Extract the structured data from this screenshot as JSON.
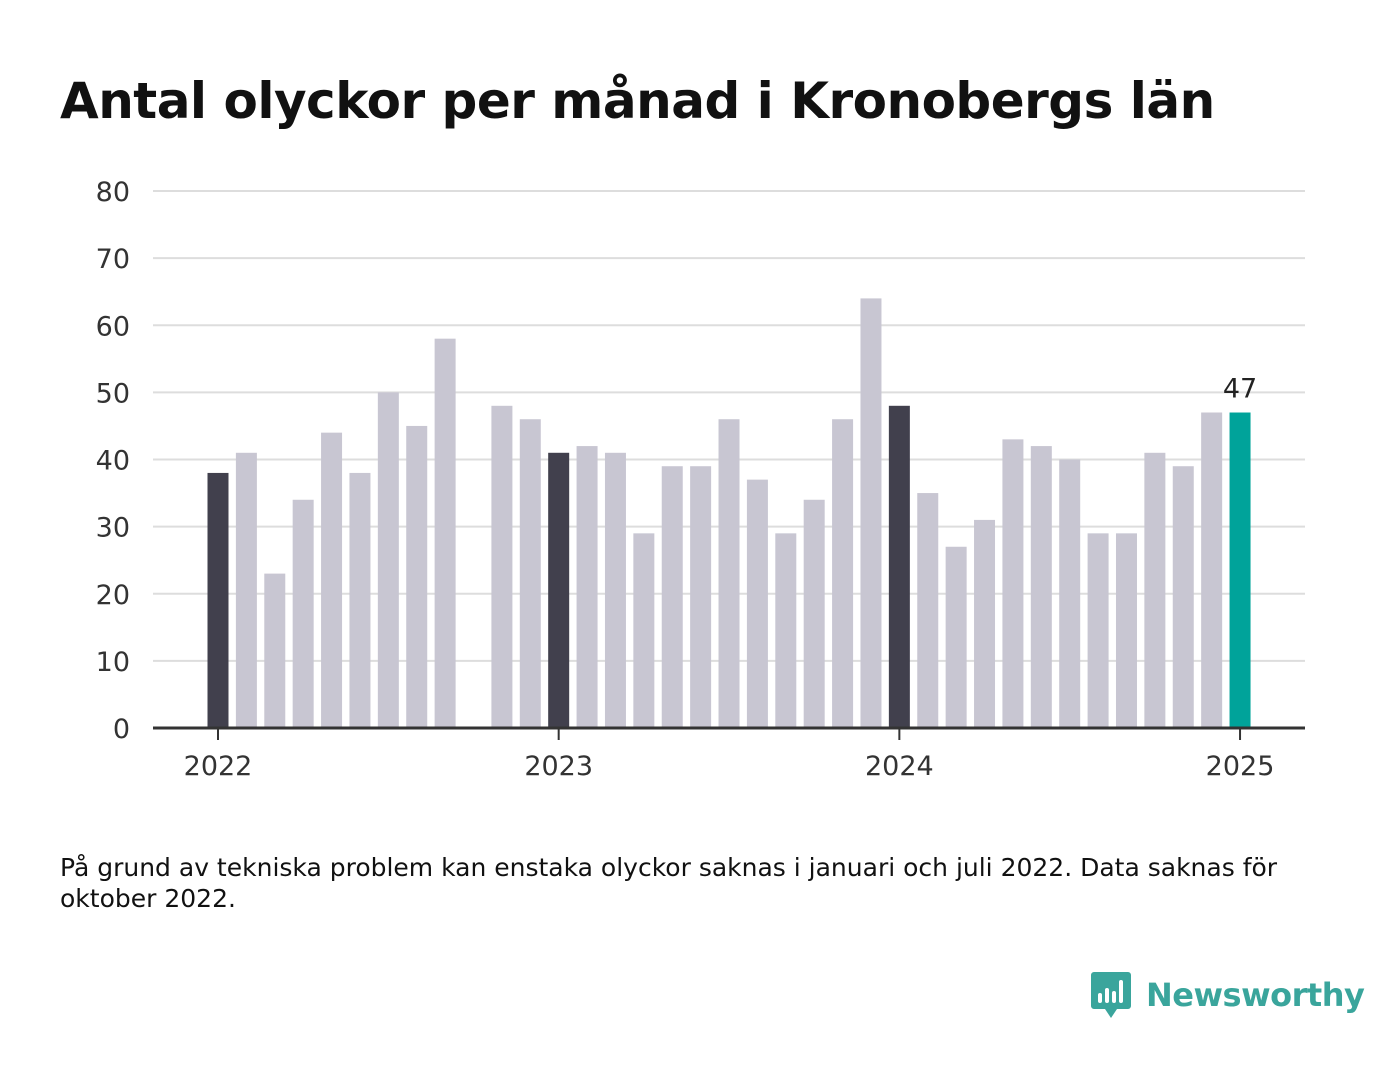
{
  "title": "Antal olyckor per månad i Kronobergs län",
  "note": "På grund av tekniska problem kan enstaka olyckor saknas i januari och juli 2022. Data saknas för oktober 2022.",
  "brand": {
    "name": "Newsworthy"
  },
  "colors": {
    "bar_default": "#c8c6d2",
    "bar_january": "#41404d",
    "bar_latest": "#00a39a",
    "grid": "#dddddd",
    "axis": "#333333",
    "brand": "#3aa59c"
  },
  "chart_data": {
    "type": "bar",
    "x": [
      "2022-01",
      "2022-02",
      "2022-03",
      "2022-04",
      "2022-05",
      "2022-06",
      "2022-07",
      "2022-08",
      "2022-09",
      "2022-10",
      "2022-11",
      "2022-12",
      "2023-01",
      "2023-02",
      "2023-03",
      "2023-04",
      "2023-05",
      "2023-06",
      "2023-07",
      "2023-08",
      "2023-09",
      "2023-10",
      "2023-11",
      "2023-12",
      "2024-01",
      "2024-02",
      "2024-03",
      "2024-04",
      "2024-05",
      "2024-06",
      "2024-07",
      "2024-08",
      "2024-09",
      "2024-10",
      "2024-11",
      "2024-12",
      "2025-01"
    ],
    "values": [
      38,
      41,
      23,
      34,
      44,
      38,
      50,
      45,
      58,
      null,
      48,
      46,
      41,
      42,
      41,
      29,
      39,
      39,
      46,
      37,
      29,
      34,
      46,
      64,
      48,
      35,
      27,
      31,
      43,
      42,
      40,
      29,
      29,
      41,
      39,
      47,
      47
    ],
    "x_ticks": [
      "2022",
      "2023",
      "2024",
      "2025"
    ],
    "y_ticks": [
      0,
      10,
      20,
      30,
      40,
      50,
      60,
      70,
      80
    ],
    "ylim": [
      0,
      80
    ],
    "grid": true,
    "highlight": {
      "label": "47"
    }
  }
}
